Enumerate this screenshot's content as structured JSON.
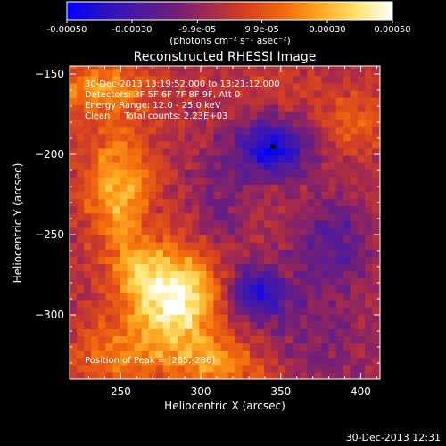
{
  "colorbar": {
    "ticks": [
      "-0.00050",
      "-0.00030",
      "-9.9e-05",
      "9.9e-05",
      "0.00030",
      "0.00050"
    ],
    "tick_values": [
      -0.0005,
      -0.0003,
      -9.9e-05,
      9.9e-05,
      0.0003,
      0.0005
    ],
    "range": [
      -0.0005,
      0.0005
    ],
    "units": "(photons cm⁻² s⁻¹ asec⁻²)",
    "colormap": [
      "#0000ff",
      "#2a12c8",
      "#4b1aa0",
      "#701f7a",
      "#a82a4a",
      "#d84220",
      "#f26a0c",
      "#ffa71f",
      "#ffe36e",
      "#ffffff"
    ]
  },
  "chart_data": {
    "type": "heatmap",
    "title": "Reconstructed RHESSI Image",
    "xlabel": "Heliocentric X (arcsec)",
    "ylabel": "Heliocentric Y (arcsec)",
    "xlim": [
      218,
      412
    ],
    "ylim": [
      -340,
      -145
    ],
    "x_ticks": [
      250,
      300,
      350,
      400
    ],
    "y_ticks": [
      -150,
      -200,
      -250,
      -300
    ],
    "annotations": [
      "30-Dec-2013 13:19:52.000 to 13:21:12.000",
      "Detectors: 3F 5F 6F 7F 8F 9F, Att 0",
      "Energy Range: 12.0 - 25.0 keV",
      "Clean     Total counts: 2.23E+03"
    ],
    "peak_label": "Position of Peak = [285,-286]",
    "peak": [
      285,
      -286
    ],
    "marker": [
      345,
      -195
    ],
    "blobs": [
      {
        "x": 285,
        "y": -290,
        "amp": 0.00052,
        "sx": 20,
        "sy": 22
      },
      {
        "x": 248,
        "y": -220,
        "amp": 0.00034,
        "sx": 14,
        "sy": 26
      },
      {
        "x": 238,
        "y": -158,
        "amp": 0.00026,
        "sx": 22,
        "sy": 12
      },
      {
        "x": 248,
        "y": -325,
        "amp": 0.0002,
        "sx": 22,
        "sy": 14
      },
      {
        "x": 312,
        "y": -330,
        "amp": 0.00024,
        "sx": 20,
        "sy": 12
      },
      {
        "x": 260,
        "y": -272,
        "amp": 0.00018,
        "sx": 12,
        "sy": 14
      },
      {
        "x": 395,
        "y": -178,
        "amp": 0.00016,
        "sx": 14,
        "sy": 14
      },
      {
        "x": 340,
        "y": -160,
        "amp": 6e-05,
        "sx": 20,
        "sy": 10
      },
      {
        "x": 345,
        "y": -196,
        "amp": -0.00042,
        "sx": 16,
        "sy": 13
      },
      {
        "x": 335,
        "y": -285,
        "amp": -0.00036,
        "sx": 12,
        "sy": 11
      },
      {
        "x": 382,
        "y": -255,
        "amp": -0.00022,
        "sx": 18,
        "sy": 20
      },
      {
        "x": 360,
        "y": -305,
        "amp": -0.00012,
        "sx": 30,
        "sy": 16
      },
      {
        "x": 312,
        "y": -232,
        "amp": -0.00014,
        "sx": 12,
        "sy": 30
      },
      {
        "x": 385,
        "y": -330,
        "amp": -8e-05,
        "sx": 16,
        "sy": 10
      }
    ]
  },
  "footer": {
    "timestamp": "30-Dec-2013 12:31"
  }
}
